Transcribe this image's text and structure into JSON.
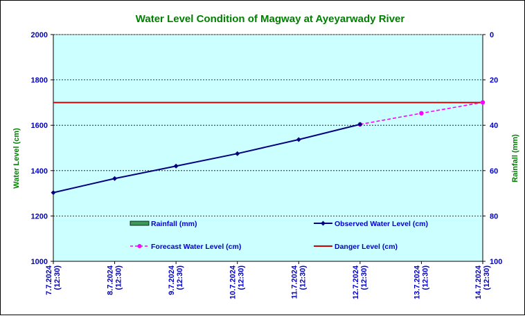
{
  "chart_data": {
    "type": "line",
    "title": "Water Level Condition of Magway at Ayeyarwady River",
    "ylabel": "Water Level (cm)",
    "y2label": "Rainfall (mm)",
    "ylim": [
      1000,
      2000
    ],
    "y2lim": [
      100,
      0
    ],
    "yticks": [
      "1000",
      "1200",
      "1400",
      "1600",
      "1800",
      "2000"
    ],
    "y2ticks": [
      "100",
      "80",
      "60",
      "40",
      "20",
      "0"
    ],
    "categories": [
      "7.7.2024\n(12:30)",
      "8.7.2024\n(12:30)",
      "9.7.2024\n(12:30)",
      "10.7.2024\n(12:30)",
      "11.7.2024\n(12:30)",
      "12.7.2024\n(12:30)",
      "13.7.2024\n(12:30)",
      "14.7.2024\n(12:30)"
    ],
    "series": [
      {
        "name": "Rainfall (mm)",
        "kind": "bar",
        "axis": "right",
        "color": "#3a9a5a",
        "values": [
          null,
          null,
          null,
          null,
          null,
          null,
          null,
          null
        ]
      },
      {
        "name": "Observed Water Level (cm)",
        "kind": "line",
        "marker": "diamond",
        "color": "#000080",
        "values": [
          1303,
          1365,
          1420,
          1475,
          1537,
          1604,
          null,
          null
        ]
      },
      {
        "name": "Forecast Water Level (cm)",
        "kind": "dashed-line",
        "marker": "circle",
        "color": "#ff00ff",
        "values": [
          null,
          null,
          null,
          null,
          null,
          1604,
          1653,
          1701
        ]
      },
      {
        "name": "Danger Level (cm)",
        "kind": "hline",
        "color": "#cc0000",
        "value": 1700
      }
    ],
    "grid": true,
    "legend_position": "bottom-inside",
    "colors": {
      "plot_background": "#ccffff",
      "title": "#008000",
      "axis_labels": "#008000",
      "ticks": "#0000cc"
    }
  }
}
